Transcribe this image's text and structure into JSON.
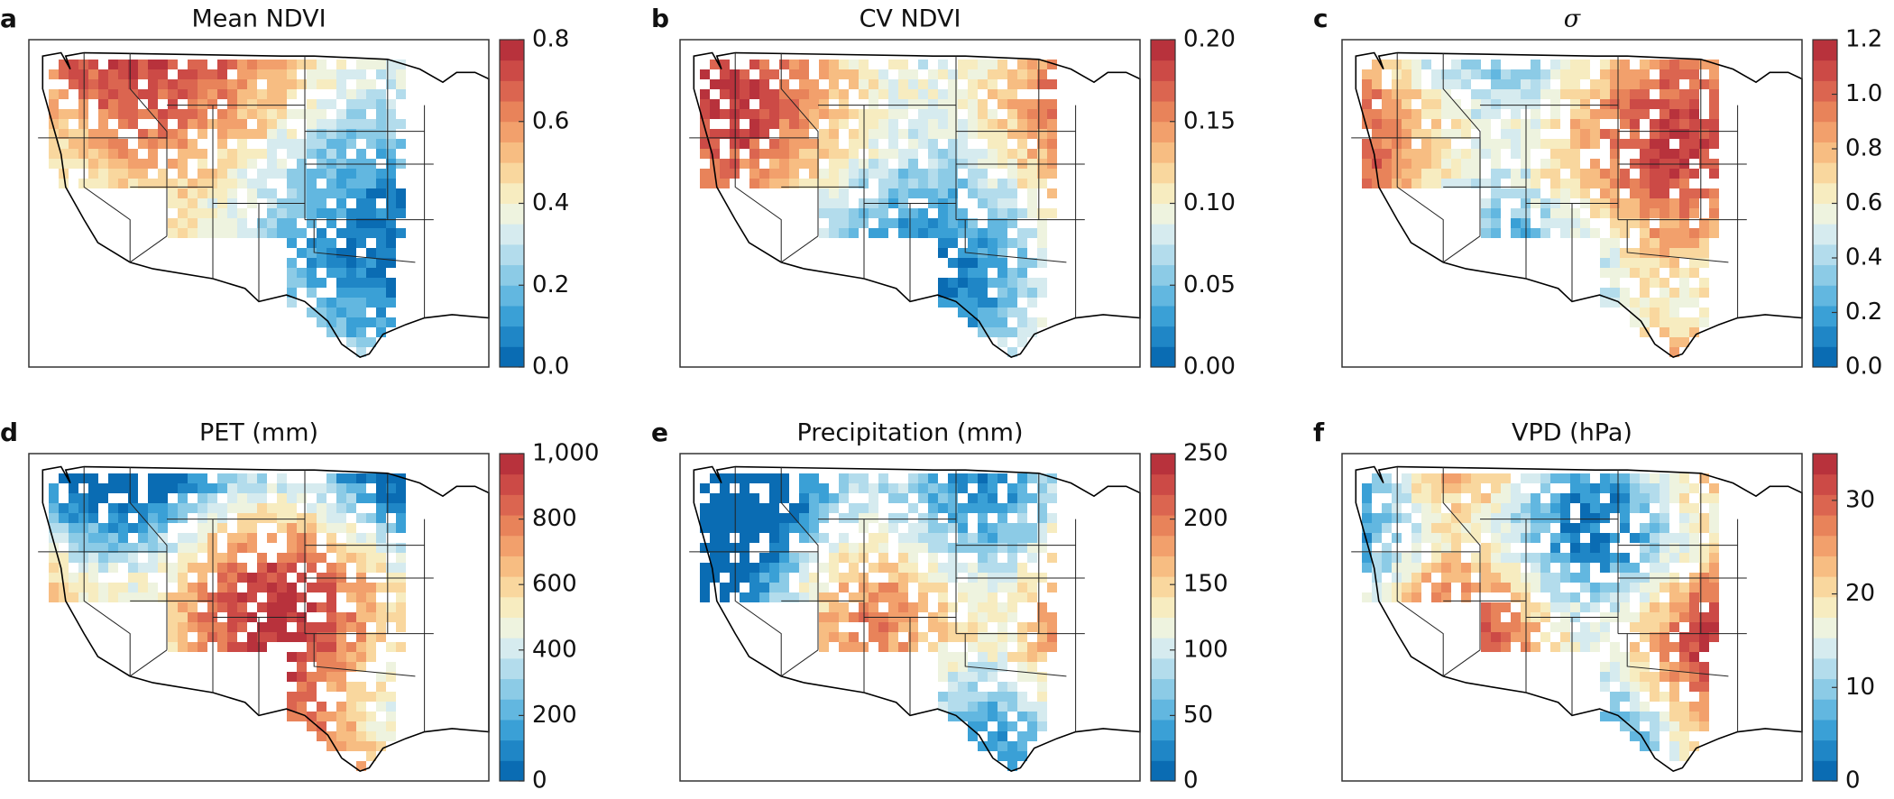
{
  "colormap": "RdYlBu_r",
  "panels": [
    {
      "letter": "a",
      "title": "Mean NDVI",
      "colorbar": {
        "lim": [
          0,
          0.8
        ],
        "ticks": [
          {
            "value": 0,
            "label": "0.0"
          },
          0.2,
          0.4,
          0.6,
          0.8
        ]
      }
    },
    {
      "letter": "b",
      "title": "CV NDVI",
      "colorbar": {
        "lim": [
          0,
          0.2
        ],
        "ticks": [
          {
            "value": 0,
            "label": "0.00"
          },
          0.05,
          {
            "value": 0.1,
            "label": "0.10"
          },
          0.15,
          {
            "value": 0.2,
            "label": "0.20"
          }
        ]
      }
    },
    {
      "letter": "c",
      "title": "σ",
      "colorbar": {
        "lim": [
          0,
          1.2
        ],
        "ticks": [
          {
            "value": 0,
            "label": "0.0"
          },
          0.2,
          0.4,
          0.6,
          0.8,
          {
            "value": 1,
            "label": "1.0"
          },
          1.2
        ]
      }
    },
    {
      "letter": "d",
      "title": "PET (mm)",
      "colorbar": {
        "lim": [
          0,
          1000
        ],
        "ticks": [
          0,
          200,
          400,
          600,
          800,
          {
            "value": 1000,
            "label": "1,000"
          }
        ]
      }
    },
    {
      "letter": "e",
      "title": "Precipitation (mm)",
      "colorbar": {
        "lim": [
          0,
          250
        ],
        "ticks": [
          0,
          50,
          100,
          150,
          200,
          250
        ]
      }
    },
    {
      "letter": "f",
      "title": "VPD (hPa)",
      "colorbar": {
        "lim": [
          0,
          35
        ],
        "ticks": [
          0,
          10,
          20,
          30
        ]
      }
    }
  ]
}
